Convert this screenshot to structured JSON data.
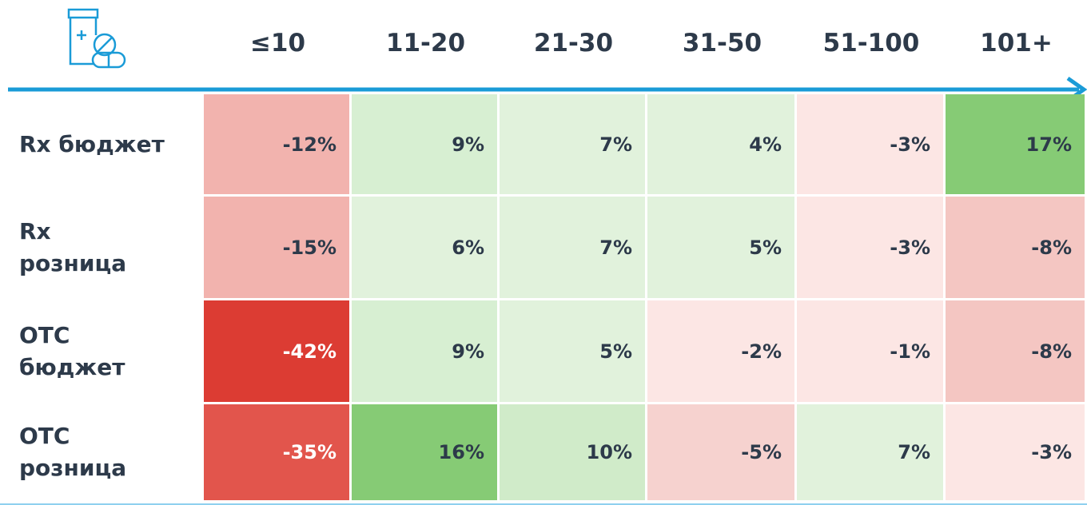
{
  "table": {
    "columns": [
      "≤10",
      "11-20",
      "21-30",
      "31-50",
      "51-100",
      "101+"
    ],
    "rows": [
      {
        "label": "Rx бюджет",
        "cells": [
          "-12%",
          "9%",
          "7%",
          "4%",
          "-3%",
          "17%"
        ],
        "colors": [
          "#f2b3ae",
          "#d7efd2",
          "#e1f2dc",
          "#e1f2dc",
          "#fce6e4",
          "#86cb75"
        ]
      },
      {
        "label": "Rx\nрозница",
        "cells": [
          "-15%",
          "6%",
          "7%",
          "5%",
          "-3%",
          "-8%"
        ],
        "colors": [
          "#f2b3ae",
          "#e1f2dc",
          "#e1f2dc",
          "#e1f2dc",
          "#fce6e4",
          "#f4c6c2"
        ]
      },
      {
        "label": "OTC\nбюджет",
        "cells": [
          "-42%",
          "9%",
          "5%",
          "-2%",
          "-1%",
          "-8%"
        ],
        "colors": [
          "#dc3c33",
          "#d7efd2",
          "#e1f2dc",
          "#fce6e4",
          "#fce6e4",
          "#f4c6c2"
        ]
      },
      {
        "label": "OTC\nрозница",
        "cells": [
          "-35%",
          "16%",
          "10%",
          "-5%",
          "7%",
          "-3%"
        ],
        "colors": [
          "#e2554c",
          "#86cb75",
          "#d0ebc9",
          "#f6d2cf",
          "#e1f2dc",
          "#fce6e4"
        ]
      }
    ]
  }
}
